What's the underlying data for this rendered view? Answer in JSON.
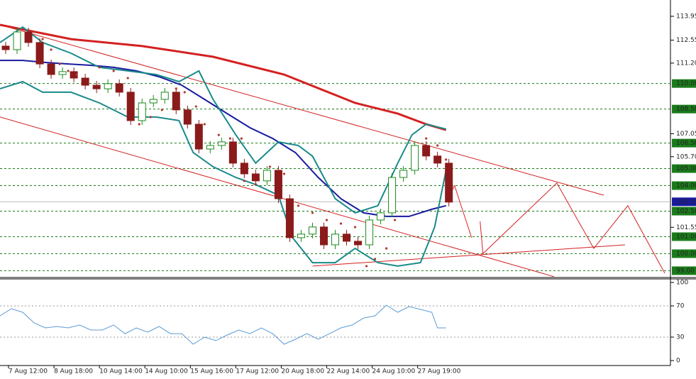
{
  "chart_data": [
    {
      "type": "candlestick",
      "xlim": [
        0,
        236
      ],
      "ylim": [
        98.6,
        114.7
      ],
      "bull_color": "#1b8a1b",
      "bear_color": "#8b1a1a",
      "candles": {
        "x": [
          2,
          6,
          10,
          14,
          18,
          22,
          26,
          30,
          34,
          38,
          42,
          46,
          50,
          54,
          58,
          62,
          66,
          70,
          74,
          78,
          82,
          86,
          90,
          94,
          98,
          102,
          106,
          110,
          114,
          118,
          122,
          126,
          130,
          134,
          138,
          142,
          146,
          150,
          154,
          158
        ],
        "open": [
          112.2,
          111.99,
          113.03,
          112.41,
          111.15,
          110.53,
          110.7,
          110.32,
          109.9,
          109.69,
          109.99,
          109.49,
          107.82,
          108.86,
          109.07,
          109.49,
          108.45,
          107.61,
          106.15,
          106.36,
          106.57,
          105.32,
          104.69,
          104.28,
          104.9,
          103.23,
          100.94,
          101.15,
          101.57,
          100.52,
          101.15,
          100.73,
          100.52,
          101.98,
          102.4,
          104.48,
          104.9,
          106.36,
          105.74,
          105.32
        ],
        "high": [
          112.45,
          113.28,
          113.28,
          112.66,
          111.4,
          110.95,
          110.95,
          110.57,
          110.15,
          110.24,
          110.24,
          109.74,
          109.11,
          109.32,
          109.74,
          109.74,
          108.7,
          107.86,
          106.61,
          106.82,
          106.82,
          105.57,
          104.94,
          105.15,
          105.15,
          103.48,
          101.4,
          101.82,
          101.82,
          101.4,
          101.4,
          100.98,
          102.23,
          102.65,
          104.73,
          105.15,
          106.61,
          106.61,
          105.99,
          105.57
        ],
        "low": [
          111.74,
          111.74,
          112.16,
          110.9,
          110.28,
          110.28,
          110.07,
          109.65,
          109.44,
          109.44,
          109.24,
          107.57,
          107.57,
          108.61,
          108.82,
          108.2,
          107.36,
          105.9,
          105.9,
          106.11,
          105.07,
          104.44,
          104.03,
          104.03,
          102.98,
          100.69,
          100.69,
          100.9,
          100.27,
          100.27,
          100.48,
          100.27,
          100.27,
          101.73,
          102.15,
          104.23,
          104.65,
          105.49,
          105.07,
          102.78
        ],
        "close": [
          111.99,
          113.03,
          112.41,
          111.15,
          110.53,
          110.7,
          110.32,
          109.9,
          109.69,
          109.99,
          109.49,
          107.82,
          108.86,
          109.07,
          109.49,
          108.45,
          107.61,
          106.15,
          106.36,
          106.57,
          105.32,
          104.69,
          104.28,
          104.9,
          103.23,
          100.94,
          101.15,
          101.57,
          100.52,
          101.15,
          100.73,
          100.52,
          101.98,
          102.4,
          104.48,
          104.9,
          106.36,
          105.74,
          105.32,
          103.03
        ]
      },
      "series": [
        {
          "color": "#d42020",
          "width": 3,
          "x": [
            0,
            25,
            50,
            75,
            100,
            125,
            140,
            150,
            157
          ],
          "values": [
            113.45,
            112.61,
            112.2,
            111.57,
            110.53,
            108.86,
            108.23,
            107.61,
            107.27
          ]
        },
        {
          "color": "#1a1aa0",
          "width": 2,
          "x": [
            0,
            8,
            16,
            24,
            32,
            40,
            48,
            56,
            64,
            72,
            80,
            88,
            96,
            104,
            112,
            120,
            128,
            136,
            144,
            152,
            157
          ],
          "values": [
            111.36,
            111.36,
            111.24,
            111.15,
            111.07,
            110.95,
            110.74,
            110.4,
            109.9,
            109.07,
            108.23,
            107.4,
            106.77,
            105.94,
            104.48,
            103.23,
            102.4,
            102.19,
            102.19,
            102.61,
            102.82
          ]
        },
        {
          "color": "#1a8a8a",
          "width": 2,
          "x": [
            0,
            8,
            15,
            25,
            35,
            45,
            55,
            63,
            70,
            75,
            83,
            90,
            98,
            105,
            110,
            118,
            125,
            133,
            140,
            145,
            150,
            157
          ],
          "values": [
            112.41,
            113.32,
            112.41,
            111.78,
            110.95,
            110.74,
            110.53,
            110.11,
            110.74,
            109.07,
            106.98,
            105.32,
            106.57,
            106.36,
            105.73,
            103.23,
            102.4,
            102.82,
            105.32,
            106.98,
            107.61,
            107.32
          ]
        },
        {
          "color": "#1a8a8a",
          "width": 2,
          "x": [
            0,
            8,
            15,
            25,
            35,
            45,
            55,
            63,
            68,
            75,
            83,
            90,
            98,
            103,
            110,
            118,
            125,
            133,
            140,
            148,
            153,
            157
          ],
          "values": [
            109.69,
            110.11,
            109.49,
            109.49,
            108.86,
            108.03,
            108.03,
            107.82,
            105.94,
            105.11,
            104.48,
            104.06,
            103.44,
            100.94,
            99.47,
            99.47,
            100.31,
            99.47,
            99.27,
            99.47,
            101.56,
            104.9
          ]
        }
      ],
      "sar": {
        "color": "#b03a2e",
        "x": [
          12,
          15,
          18,
          21,
          24,
          27,
          35,
          40,
          45,
          49,
          53,
          57,
          62,
          65,
          69,
          72,
          77,
          81,
          85,
          86,
          90,
          95,
          100,
          105,
          110,
          115,
          120,
          125,
          129,
          132,
          136,
          139,
          150,
          154,
          157
        ],
        "values": [
          113.03,
          112.61,
          111.99,
          111.15,
          110.74,
          110.53,
          110.95,
          110.74,
          110.32,
          107.61,
          108.03,
          108.45,
          109.7,
          109.49,
          108.65,
          107.61,
          106.98,
          106.77,
          106.77,
          104.28,
          104.07,
          105.11,
          104.69,
          102.82,
          102.4,
          101.98,
          101.77,
          101.56,
          99.27,
          99.69,
          100.31,
          101.98,
          106.77,
          106.36,
          105.53
        ]
      },
      "trendlines": {
        "color": "#d42020",
        "lines": [
          {
            "x": [
              0,
              212.5
            ],
            "values": [
              113.45,
              103.44
            ]
          },
          {
            "x": [
              0,
              195
            ],
            "values": [
              108.03,
              98.65
            ]
          },
          {
            "x": [
              110,
              220
            ],
            "values": [
              99.27,
              100.52
            ]
          },
          {
            "x": [
              157,
              160,
              166
            ],
            "values": [
              103.03,
              104.0,
              100.94
            ]
          },
          {
            "x": [
              169,
              170,
              196,
              209,
              221,
              234
            ],
            "values": [
              101.9,
              100.0,
              104.15,
              100.31,
              102.82,
              98.85
            ]
          }
        ]
      },
      "yticks": [
        {
          "value": 113.95,
          "label": "113.95"
        },
        {
          "value": 112.55,
          "label": "112.55"
        },
        {
          "value": 111.2,
          "label": "111.20"
        },
        {
          "value": 107.05,
          "label": "107.05"
        },
        {
          "value": 105.7,
          "label": "105.70"
        },
        {
          "value": 101.55,
          "label": "101.55"
        }
      ],
      "levels": {
        "color": "#1a7a1a",
        "ticks": [
          {
            "value": 110,
            "label": "110.00"
          },
          {
            "value": 108.5,
            "label": "108.50"
          },
          {
            "value": 106.5,
            "label": "106.50"
          },
          {
            "value": 105,
            "label": "105.00"
          },
          {
            "value": 104,
            "label": "104.00"
          },
          {
            "value": 102.5,
            "label": "102.50"
          },
          {
            "value": 101,
            "label": "101.00"
          },
          {
            "value": 100,
            "label": "100.00"
          },
          {
            "value": 99,
            "label": "99.00"
          }
        ]
      },
      "last_price": {
        "value": 103.05,
        "label": "103.05",
        "color": "#1a1aa0"
      }
    },
    {
      "type": "line",
      "xlim": [
        0,
        236
      ],
      "ylim": [
        0,
        100
      ],
      "yticks": [
        100,
        70,
        30,
        0
      ],
      "color": "#5b9bd5",
      "x": [
        0,
        4,
        8,
        12,
        16,
        20,
        24,
        28,
        32,
        36,
        40,
        44,
        48,
        52,
        56,
        60,
        64,
        68,
        72,
        76,
        80,
        84,
        88,
        92,
        96,
        100,
        104,
        108,
        112,
        116,
        120,
        124,
        128,
        132,
        136,
        140,
        144,
        148,
        152,
        154,
        157
      ],
      "values": [
        57.3,
        66.4,
        61.8,
        48.2,
        41.8,
        43.6,
        41.8,
        45.5,
        39.1,
        39.1,
        45.5,
        34.5,
        41.8,
        36.4,
        43.6,
        34.5,
        34.5,
        20.9,
        30.0,
        25.5,
        32.7,
        39.1,
        34.5,
        41.8,
        34.5,
        20.9,
        27.3,
        34.5,
        27.3,
        34.5,
        41.8,
        45.5,
        54.5,
        57.3,
        70.9,
        61.8,
        69.1,
        65.5,
        61.8,
        41.8,
        41.8
      ],
      "xticks": [
        {
          "value": 3,
          "label": "7 Aug 12:00"
        },
        {
          "value": 19,
          "label": "8 Aug 18:00"
        },
        {
          "value": 35,
          "label": "10 Aug 14:00"
        },
        {
          "value": 51,
          "label": "14 Aug 10:00"
        },
        {
          "value": 67,
          "label": "15 Aug 16:00"
        },
        {
          "value": 83,
          "label": "17 Aug 12:00"
        },
        {
          "value": 99,
          "label": "20 Aug 18:00"
        },
        {
          "value": 115,
          "label": "22 Aug 14:00"
        },
        {
          "value": 131,
          "label": "24 Aug 10:00"
        },
        {
          "value": 147,
          "label": "27 Aug 19:00"
        }
      ]
    }
  ]
}
